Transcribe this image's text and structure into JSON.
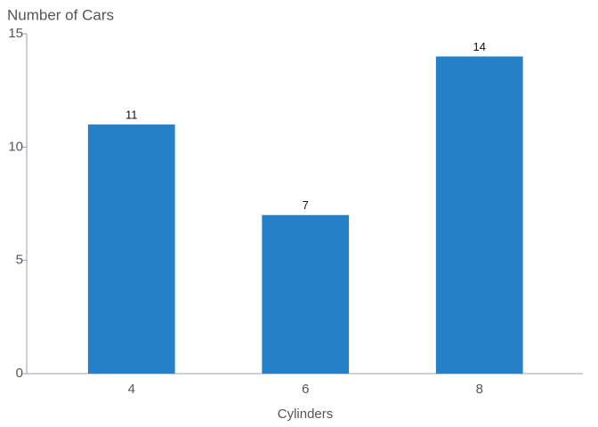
{
  "chart_data": {
    "type": "bar",
    "y_label": "Number of Cars",
    "x_label": "Cylinders",
    "categories": [
      "4",
      "6",
      "8"
    ],
    "values": [
      11,
      7,
      14
    ],
    "color": "#2580c8",
    "ylim": [
      0,
      15
    ],
    "yticks": [
      0,
      5,
      10,
      15
    ],
    "data_labels": true
  }
}
